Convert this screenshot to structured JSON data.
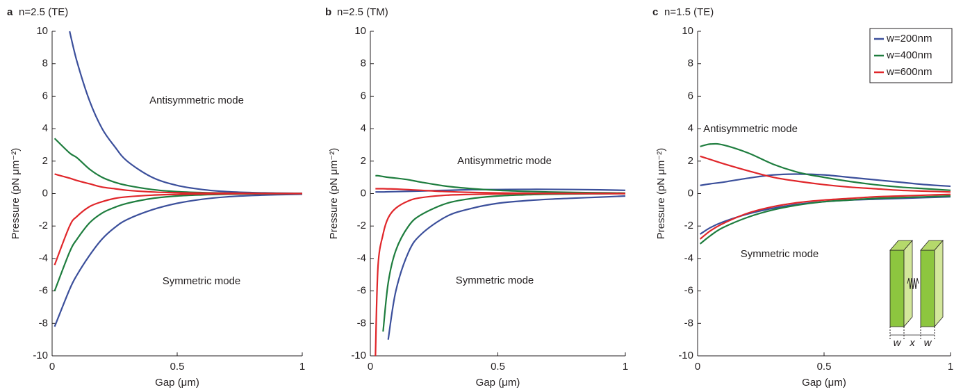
{
  "chart_data": [
    {
      "type": "line",
      "panel_label": "a",
      "title": "n=2.5 (TE)",
      "xlabel": "Gap (μm)",
      "ylabel": "Pressure (pN μm⁻²)",
      "xlim": [
        0,
        1
      ],
      "ylim": [
        -10,
        10
      ],
      "xticks": [
        0,
        0.5,
        1
      ],
      "yticks": [
        -10,
        -8,
        -6,
        -4,
        -2,
        0,
        2,
        4,
        6,
        8,
        10
      ],
      "annotations": [
        "Antisymmetric mode",
        "Symmetric mode"
      ],
      "x": [
        0.01,
        0.07,
        0.1,
        0.15,
        0.2,
        0.25,
        0.3,
        0.4,
        0.5,
        0.6,
        0.7,
        0.8,
        0.9,
        1.0
      ],
      "series": [
        {
          "color": "#3b4f9b",
          "values": [
            null,
            10,
            8.1,
            5.7,
            4.0,
            2.9,
            2.0,
            1.0,
            0.5,
            0.25,
            0.12,
            0.06,
            0.03,
            0.01
          ]
        },
        {
          "color": "#1e7d3e",
          "values": [
            3.4,
            2.5,
            2.2,
            1.5,
            1.0,
            0.7,
            0.5,
            0.25,
            0.12,
            0.06,
            0.03,
            0.02,
            0.01,
            0
          ]
        },
        {
          "color": "#e0262a",
          "values": [
            1.2,
            0.95,
            0.8,
            0.6,
            0.4,
            0.3,
            0.2,
            0.1,
            0.05,
            0.03,
            0.02,
            0.01,
            0,
            0
          ]
        },
        {
          "color": "#3b4f9b",
          "values": [
            -8.2,
            -5.9,
            -5.0,
            -3.8,
            -2.8,
            -2.1,
            -1.6,
            -1.0,
            -0.6,
            -0.35,
            -0.2,
            -0.12,
            -0.07,
            -0.04
          ]
        },
        {
          "color": "#1e7d3e",
          "values": [
            -6.0,
            -3.6,
            -2.8,
            -1.8,
            -1.2,
            -0.85,
            -0.6,
            -0.3,
            -0.15,
            -0.08,
            -0.04,
            -0.02,
            -0.01,
            0
          ]
        },
        {
          "color": "#e0262a",
          "values": [
            -4.4,
            -2.0,
            -1.4,
            -0.8,
            -0.5,
            -0.3,
            -0.2,
            -0.1,
            -0.05,
            -0.02,
            -0.01,
            0,
            0,
            0
          ]
        }
      ]
    },
    {
      "type": "line",
      "panel_label": "b",
      "title": "n=2.5 (TM)",
      "xlabel": "Gap (μm)",
      "ylabel": "Pressure (pN μm⁻²)",
      "xlim": [
        0,
        1
      ],
      "ylim": [
        -10,
        10
      ],
      "xticks": [
        0,
        0.5,
        1
      ],
      "yticks": [
        -10,
        -8,
        -6,
        -4,
        -2,
        0,
        2,
        4,
        6,
        8,
        10
      ],
      "annotations": [
        "Antisymmetric mode",
        "Symmetric mode"
      ],
      "x": [
        0.02,
        0.03,
        0.05,
        0.07,
        0.1,
        0.15,
        0.2,
        0.3,
        0.4,
        0.5,
        0.6,
        0.7,
        0.8,
        0.9,
        1.0
      ],
      "series": [
        {
          "color": "#3b4f9b",
          "values": [
            0.1,
            0.1,
            0.1,
            0.11,
            0.12,
            0.14,
            0.16,
            0.2,
            0.24,
            0.25,
            0.26,
            0.26,
            0.25,
            0.23,
            0.2
          ]
        },
        {
          "color": "#1e7d3e",
          "values": [
            1.1,
            1.1,
            1.05,
            1.0,
            0.95,
            0.85,
            0.7,
            0.45,
            0.3,
            0.2,
            0.14,
            0.1,
            0.07,
            0.05,
            0.03
          ]
        },
        {
          "color": "#e0262a",
          "values": [
            0.3,
            0.3,
            0.3,
            0.29,
            0.28,
            0.24,
            0.2,
            0.12,
            0.07,
            0.04,
            0.02,
            0.01,
            0,
            0,
            0
          ]
        },
        {
          "color": "#3b4f9b",
          "values": [
            null,
            null,
            null,
            -9.0,
            -6.0,
            -3.6,
            -2.5,
            -1.4,
            -0.9,
            -0.6,
            -0.45,
            -0.35,
            -0.28,
            -0.22,
            -0.15
          ]
        },
        {
          "color": "#1e7d3e",
          "values": [
            null,
            null,
            -8.5,
            -5.5,
            -3.5,
            -2.0,
            -1.3,
            -0.6,
            -0.3,
            -0.15,
            -0.08,
            -0.04,
            -0.02,
            -0.01,
            0
          ]
        },
        {
          "color": "#e0262a",
          "values": [
            -10,
            -4.5,
            -2.5,
            -1.5,
            -0.9,
            -0.45,
            -0.25,
            -0.1,
            -0.05,
            -0.02,
            0,
            0,
            0,
            0,
            0
          ]
        }
      ]
    },
    {
      "type": "line",
      "panel_label": "c",
      "title": "n=1.5 (TE)",
      "xlabel": "Gap (μm)",
      "ylabel": "Pressure (pN μm⁻²)",
      "xlim": [
        0,
        1
      ],
      "ylim": [
        -10,
        10
      ],
      "xticks": [
        0,
        0.5,
        1
      ],
      "yticks": [
        -10,
        -8,
        -6,
        -4,
        -2,
        0,
        2,
        4,
        6,
        8,
        10
      ],
      "annotations": [
        "Antisymmetric mode",
        "Symmetric mode"
      ],
      "inset_labels": [
        "w",
        "x",
        "w"
      ],
      "x": [
        0.01,
        0.05,
        0.1,
        0.2,
        0.3,
        0.4,
        0.5,
        0.6,
        0.7,
        0.8,
        0.9,
        1.0
      ],
      "series": [
        {
          "name": "w=200nm",
          "color": "#3b4f9b",
          "values": [
            0.5,
            0.6,
            0.7,
            0.95,
            1.15,
            1.2,
            1.15,
            1.0,
            0.85,
            0.7,
            0.55,
            0.45
          ]
        },
        {
          "name": "w=400nm",
          "color": "#1e7d3e",
          "values": [
            2.9,
            3.05,
            3.0,
            2.5,
            1.8,
            1.3,
            1.0,
            0.75,
            0.55,
            0.4,
            0.3,
            0.2
          ]
        },
        {
          "name": "w=600nm",
          "color": "#e0262a",
          "values": [
            2.3,
            2.1,
            1.85,
            1.4,
            1.0,
            0.75,
            0.55,
            0.4,
            0.3,
            0.2,
            0.15,
            0.1
          ]
        },
        {
          "color": "#3b4f9b",
          "values": [
            -2.5,
            -2.1,
            -1.75,
            -1.25,
            -0.9,
            -0.65,
            -0.5,
            -0.4,
            -0.35,
            -0.3,
            -0.25,
            -0.2
          ]
        },
        {
          "color": "#1e7d3e",
          "values": [
            -3.1,
            -2.6,
            -2.1,
            -1.45,
            -1.0,
            -0.7,
            -0.5,
            -0.4,
            -0.3,
            -0.25,
            -0.2,
            -0.15
          ]
        },
        {
          "color": "#e0262a",
          "values": [
            -2.8,
            -2.3,
            -1.85,
            -1.2,
            -0.8,
            -0.55,
            -0.4,
            -0.3,
            -0.2,
            -0.15,
            -0.1,
            -0.05
          ]
        }
      ]
    }
  ]
}
